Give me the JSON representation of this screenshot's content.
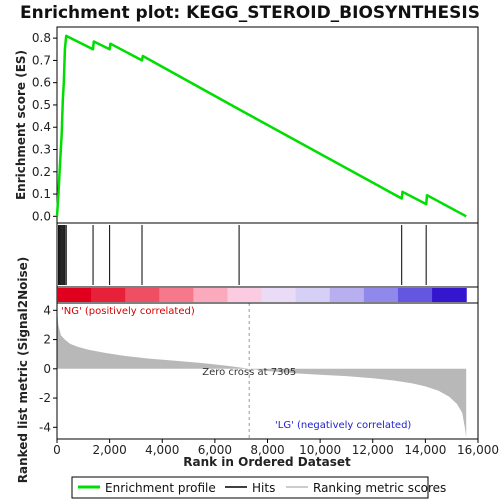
{
  "chart_data": {
    "type": "line",
    "title": "Enrichment plot: KEGG_STEROID_BIOSYNTHESIS",
    "xlabel": "Rank in Ordered Dataset",
    "ylabel_top": "Enrichment score (ES)",
    "ylabel_bottom": "Ranked list metric (Signal2Noise)",
    "xlim": [
      0,
      16000
    ],
    "x_ticks": [
      0,
      2000,
      4000,
      6000,
      8000,
      10000,
      12000,
      14000,
      16000
    ],
    "x_tick_labels": [
      "0",
      "2,000",
      "4,000",
      "6,000",
      "8,000",
      "10,000",
      "12,000",
      "14,000",
      "16,000"
    ],
    "es_ylim": [
      -0.03,
      0.85
    ],
    "es_ticks": [
      0.0,
      0.1,
      0.2,
      0.3,
      0.4,
      0.5,
      0.6,
      0.7,
      0.8
    ],
    "es_tick_labels": [
      "0.0",
      "0.1",
      "0.2",
      "0.3",
      "0.4",
      "0.5",
      "0.6",
      "0.7",
      "0.8"
    ],
    "metric_ylim": [
      -4.8,
      4.5
    ],
    "metric_ticks": [
      4,
      2,
      0,
      -2,
      -4
    ],
    "metric_tick_labels": [
      "4",
      "2",
      "0",
      "-2",
      "-4"
    ],
    "series": [
      {
        "name": "Enrichment profile",
        "color": "#00dd00",
        "x": [
          0,
          60,
          100,
          140,
          180,
          220,
          260,
          300,
          350,
          1370,
          1400,
          2000,
          2030,
          3230,
          3260,
          6920,
          13100,
          13130,
          14030,
          14060,
          15550
        ],
        "y": [
          0.0,
          0.11,
          0.2,
          0.29,
          0.37,
          0.52,
          0.6,
          0.75,
          0.81,
          0.75,
          0.785,
          0.75,
          0.775,
          0.7,
          0.72,
          0.48,
          0.08,
          0.11,
          0.055,
          0.095,
          0.0
        ]
      }
    ],
    "hits": [
      60,
      100,
      140,
      180,
      220,
      260,
      300,
      350,
      1370,
      2000,
      3230,
      6920,
      13100,
      14030
    ],
    "metric_curve": {
      "x": [
        0,
        50,
        150,
        300,
        500,
        800,
        1200,
        1800,
        2500,
        3500,
        4500,
        5500,
        6500,
        7305,
        8000,
        9000,
        10000,
        11000,
        12000,
        12800,
        13500,
        14000,
        14500,
        14900,
        15200,
        15400,
        15500,
        15550
      ],
      "y": [
        4.0,
        3.0,
        2.3,
        2.0,
        1.7,
        1.5,
        1.3,
        1.1,
        0.9,
        0.7,
        0.55,
        0.4,
        0.2,
        0.0,
        -0.15,
        -0.3,
        -0.4,
        -0.5,
        -0.65,
        -0.8,
        -1.0,
        -1.2,
        -1.5,
        -1.9,
        -2.4,
        -3.0,
        -4.0,
        -4.7
      ]
    },
    "heatmap_colors": [
      "#e0001e",
      "#e8213a",
      "#f04e63",
      "#f7788a",
      "#fba9bd",
      "#fbcbe2",
      "#eadbf6",
      "#d6d0f6",
      "#b7aff0",
      "#9088ea",
      "#6456e0",
      "#3516cf"
    ],
    "pos_label": "'NG' (positively correlated)",
    "neg_label": "'LG' (negatively correlated)",
    "pos_label_color": "#d40000",
    "neg_label_color": "#2222cc",
    "zero_cross_label": "Zero cross at 7305",
    "zero_cross": 7305,
    "legend": [
      {
        "label": "Enrichment profile",
        "color": "#00dd00",
        "kind": "thick-line"
      },
      {
        "label": "Hits",
        "color": "#000000",
        "kind": "line"
      },
      {
        "label": "Ranking metric scores",
        "color": "#bbbbbb",
        "kind": "line"
      }
    ]
  }
}
